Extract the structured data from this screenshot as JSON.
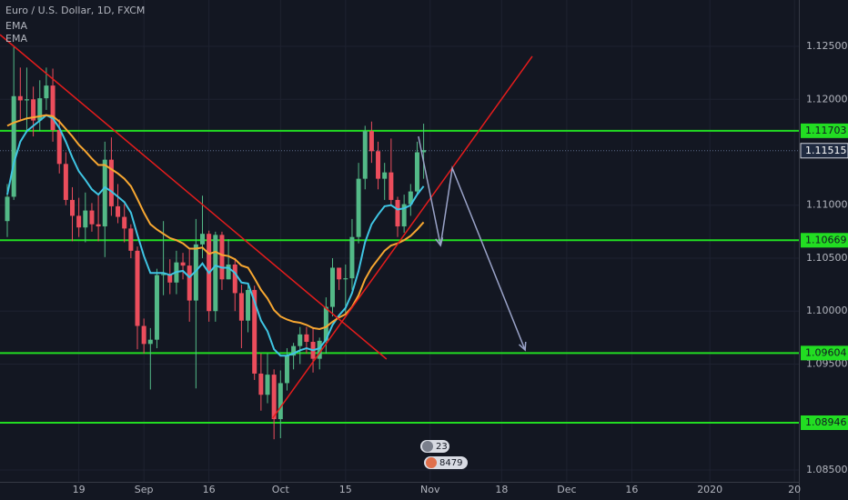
{
  "chart_data": {
    "type": "candlestick",
    "title": "Euro / U.S. Dollar, 1D, FXCM",
    "up_color": "#53b987",
    "down_color": "#eb4d5c",
    "open": [
      1.1085,
      1.1108,
      1.1203,
      1.1199,
      1.12,
      1.118,
      1.1201,
      1.1213,
      1.1171,
      1.1139,
      1.1105,
      1.109,
      1.1079,
      1.1095,
      1.1082,
      1.108,
      1.1143,
      1.1099,
      1.1089,
      1.1078,
      1.1057,
      1.0986,
      1.0969,
      1.0973,
      1.1034,
      1.1035,
      1.1027,
      1.1046,
      1.1043,
      1.101,
      1.1063,
      1.1073,
      1.1,
      1.1072,
      1.103,
      1.1044,
      1.1017,
      1.0991,
      1.102,
      1.0941,
      1.0921,
      1.094,
      1.0898,
      1.0932,
      1.0958,
      1.0967,
      1.0978,
      1.0971,
      1.0955,
      1.0972,
      1.1004,
      1.1041,
      1.103,
      1.1031,
      1.107,
      1.1125,
      1.117,
      1.1151,
      1.1125,
      1.1131,
      1.1105,
      1.108,
      1.1101,
      1.1113,
      1.115
    ],
    "high": [
      1.112,
      1.125,
      1.123,
      1.123,
      1.1212,
      1.1218,
      1.123,
      1.1229,
      1.1181,
      1.115,
      1.1117,
      1.1107,
      1.1112,
      1.1102,
      1.1111,
      1.116,
      1.1164,
      1.112,
      1.1101,
      1.1082,
      1.1061,
      1.0993,
      1.0984,
      1.104,
      1.1085,
      1.1049,
      1.1057,
      1.1055,
      1.1058,
      1.1087,
      1.1109,
      1.1076,
      1.1075,
      1.1075,
      1.1068,
      1.105,
      1.1025,
      1.1025,
      1.1024,
      1.096,
      1.096,
      1.0945,
      1.0944,
      1.0965,
      1.097,
      1.0985,
      1.0985,
      1.0985,
      1.0975,
      1.1013,
      1.105,
      1.104,
      1.1044,
      1.1087,
      1.114,
      1.1175,
      1.1179,
      1.116,
      1.114,
      1.1163,
      1.1108,
      1.111,
      1.112,
      1.116,
      1.1177
    ],
    "low": [
      1.107,
      1.1105,
      1.118,
      1.117,
      1.1165,
      1.117,
      1.119,
      1.116,
      1.113,
      1.11,
      1.1066,
      1.107,
      1.1065,
      1.1075,
      1.1066,
      1.1051,
      1.109,
      1.1083,
      1.1065,
      1.105,
      1.0964,
      1.096,
      1.0926,
      1.0965,
      1.1015,
      1.1016,
      1.1016,
      1.103,
      1.099,
      1.0927,
      1.105,
      1.099,
      1.099,
      1.102,
      1.103,
      1.1,
      1.0965,
      1.098,
      1.0935,
      1.0906,
      1.0913,
      1.0879,
      1.088,
      1.0925,
      1.0945,
      1.095,
      1.096,
      1.0942,
      1.0945,
      1.096,
      1.0995,
      1.102,
      1.0997,
      1.102,
      1.1064,
      1.1115,
      1.114,
      1.1115,
      1.1105,
      1.11,
      1.107,
      1.1074,
      1.109,
      1.111,
      1.1125
    ],
    "close": [
      1.1108,
      1.1203,
      1.1199,
      1.12,
      1.118,
      1.1201,
      1.1213,
      1.1171,
      1.1139,
      1.1105,
      1.109,
      1.1079,
      1.1095,
      1.1082,
      1.108,
      1.1143,
      1.1099,
      1.1089,
      1.1078,
      1.1057,
      1.0986,
      1.0969,
      1.0973,
      1.1034,
      1.1035,
      1.1027,
      1.1046,
      1.1043,
      1.101,
      1.1063,
      1.1073,
      1.1,
      1.1072,
      1.103,
      1.1044,
      1.1017,
      1.0991,
      1.102,
      1.0941,
      1.0921,
      1.094,
      1.0898,
      1.0932,
      1.0958,
      1.0967,
      1.0978,
      1.0971,
      1.0955,
      1.0972,
      1.1004,
      1.1041,
      1.103,
      1.1031,
      1.107,
      1.1125,
      1.117,
      1.1151,
      1.1125,
      1.1131,
      1.1105,
      1.108,
      1.1101,
      1.1113,
      1.115,
      1.1152
    ],
    "series": [
      {
        "name": "EMA",
        "color": "#3fc5e3",
        "values": [
          1.111,
          1.114,
          1.116,
          1.117,
          1.1175,
          1.118,
          1.1185,
          1.1182,
          1.1173,
          1.116,
          1.1145,
          1.1132,
          1.1124,
          1.1115,
          1.111,
          1.1117,
          1.1113,
          1.1108,
          1.1103,
          1.1093,
          1.1072,
          1.1052,
          1.1036,
          1.1036,
          1.1036,
          1.1034,
          1.1037,
          1.1038,
          1.1032,
          1.1038,
          1.1045,
          1.1036,
          1.1043,
          1.1041,
          1.1041,
          1.1036,
          1.1027,
          1.1026,
          1.1009,
          1.0991,
          1.0981,
          1.0964,
          1.0958,
          1.0958,
          1.096,
          1.0963,
          1.0965,
          1.0963,
          1.0965,
          1.0973,
          1.0987,
          1.0996,
          1.1003,
          1.1017,
          1.1038,
          1.1065,
          1.1082,
          1.1091,
          1.1099,
          1.11,
          1.1096,
          1.1097,
          1.11,
          1.111,
          1.1118
        ]
      },
      {
        "name": "EMA",
        "color": "#f7a731",
        "values": [
          1.1175,
          1.1178,
          1.118,
          1.1182,
          1.1183,
          1.1184,
          1.1185,
          1.1184,
          1.1179,
          1.1172,
          1.1165,
          1.1157,
          1.1151,
          1.1144,
          1.1138,
          1.1138,
          1.1134,
          1.113,
          1.1125,
          1.1118,
          1.1106,
          1.1093,
          1.1082,
          1.1077,
          1.1073,
          1.1069,
          1.1067,
          1.1064,
          1.1059,
          1.1059,
          1.106,
          1.1054,
          1.1056,
          1.1053,
          1.1052,
          1.1049,
          1.1043,
          1.1041,
          1.1031,
          1.102,
          1.1012,
          1.1001,
          1.0995,
          1.0992,
          1.099,
          1.0989,
          1.0987,
          1.0984,
          1.0983,
          1.0985,
          1.099,
          1.0994,
          1.0997,
          1.1004,
          1.1015,
          1.103,
          1.1041,
          1.1049,
          1.1057,
          1.1062,
          1.1064,
          1.1067,
          1.1071,
          1.1077,
          1.1084
        ]
      }
    ],
    "levels": [
      1.11703,
      1.10669,
      1.09604,
      1.08946
    ],
    "level_color": "#22dd22",
    "last_price": 1.11515,
    "trendlines": [
      {
        "color": "#e51c1c",
        "points": [
          [
            -1.12,
            1.12611
          ],
          [
            58.3,
            1.09547
          ]
        ]
      },
      {
        "color": "#e51c1c",
        "points": [
          [
            40.8,
            1.08989
          ],
          [
            80.7,
            1.12406
          ]
        ]
      }
    ],
    "arrow": {
      "color": "#9aa3c8",
      "points": [
        [
          63.2,
          1.1165
        ],
        [
          66.6,
          1.1062
        ],
        [
          68.4,
          1.1135
        ],
        [
          79.6,
          1.09633
        ]
      ]
    },
    "badges": [
      "23",
      "8479"
    ],
    "xlim": [
      -1.12,
      121.68
    ],
    "ylim": [
      1.08388,
      1.12938
    ],
    "xticks": [
      {
        "value": 11,
        "label": "19"
      },
      {
        "value": 21,
        "label": "Sep"
      },
      {
        "value": 31,
        "label": "16"
      },
      {
        "value": 42,
        "label": "Oct"
      },
      {
        "value": 52,
        "label": "15"
      },
      {
        "value": 65,
        "label": "Nov"
      },
      {
        "value": 76,
        "label": "18"
      },
      {
        "value": 86,
        "label": "Dec"
      },
      {
        "value": 96,
        "label": "16"
      },
      {
        "value": 108,
        "label": "2020"
      },
      {
        "value": 121,
        "label": "20"
      }
    ],
    "yticks": [
      {
        "value": 1.125,
        "label": "1.12500"
      },
      {
        "value": 1.12,
        "label": "1.12000"
      },
      {
        "value": 1.11,
        "label": "1.11000"
      },
      {
        "value": 1.105,
        "label": "1.10500"
      },
      {
        "value": 1.1,
        "label": "1.10000"
      },
      {
        "value": 1.095,
        "label": "1.09500"
      },
      {
        "value": 1.085,
        "label": "1.08500"
      }
    ],
    "grid": true
  }
}
